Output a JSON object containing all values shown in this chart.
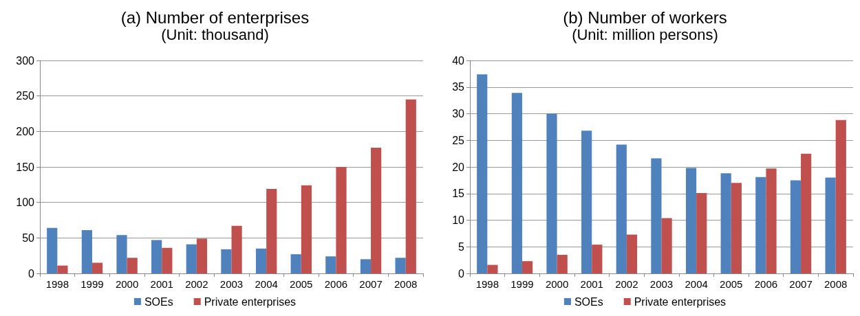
{
  "chart_data": [
    {
      "type": "bar",
      "title": "(a) Number of enterprises",
      "subtitle": "(Unit: thousand)",
      "categories": [
        "1998",
        "1999",
        "2000",
        "2001",
        "2002",
        "2003",
        "2004",
        "2005",
        "2006",
        "2007",
        "2008"
      ],
      "series": [
        {
          "name": "SOEs",
          "color": "#4f81bd",
          "values": [
            64,
            61,
            54,
            47,
            41,
            34,
            35,
            27,
            24,
            20,
            22
          ]
        },
        {
          "name": "Private enterprises",
          "color": "#c0504d",
          "values": [
            11,
            15,
            22,
            36,
            49,
            67,
            119,
            124,
            150,
            177,
            245
          ]
        }
      ],
      "ylim": [
        0,
        300
      ],
      "yticks": [
        0,
        50,
        100,
        150,
        200,
        250,
        300
      ],
      "grid": "y",
      "legend": "bottom"
    },
    {
      "type": "bar",
      "title": "(b) Number of workers",
      "subtitle": "(Unit: million persons)",
      "categories": [
        "1998",
        "1999",
        "2000",
        "2001",
        "2002",
        "2003",
        "2004",
        "2005",
        "2006",
        "2007",
        "2008"
      ],
      "series": [
        {
          "name": "SOEs",
          "color": "#4f81bd",
          "values": [
            37.4,
            33.9,
            30.0,
            26.8,
            24.2,
            21.6,
            19.8,
            18.8,
            18.1,
            17.5,
            18.0
          ]
        },
        {
          "name": "Private enterprises",
          "color": "#c0504d",
          "values": [
            1.6,
            2.3,
            3.5,
            5.4,
            7.3,
            10.4,
            15.1,
            17.0,
            19.7,
            22.5,
            28.8
          ]
        }
      ],
      "ylim": [
        0,
        40
      ],
      "yticks": [
        0,
        5,
        10,
        15,
        20,
        25,
        30,
        35,
        40
      ],
      "grid": "y",
      "legend": "bottom"
    }
  ]
}
